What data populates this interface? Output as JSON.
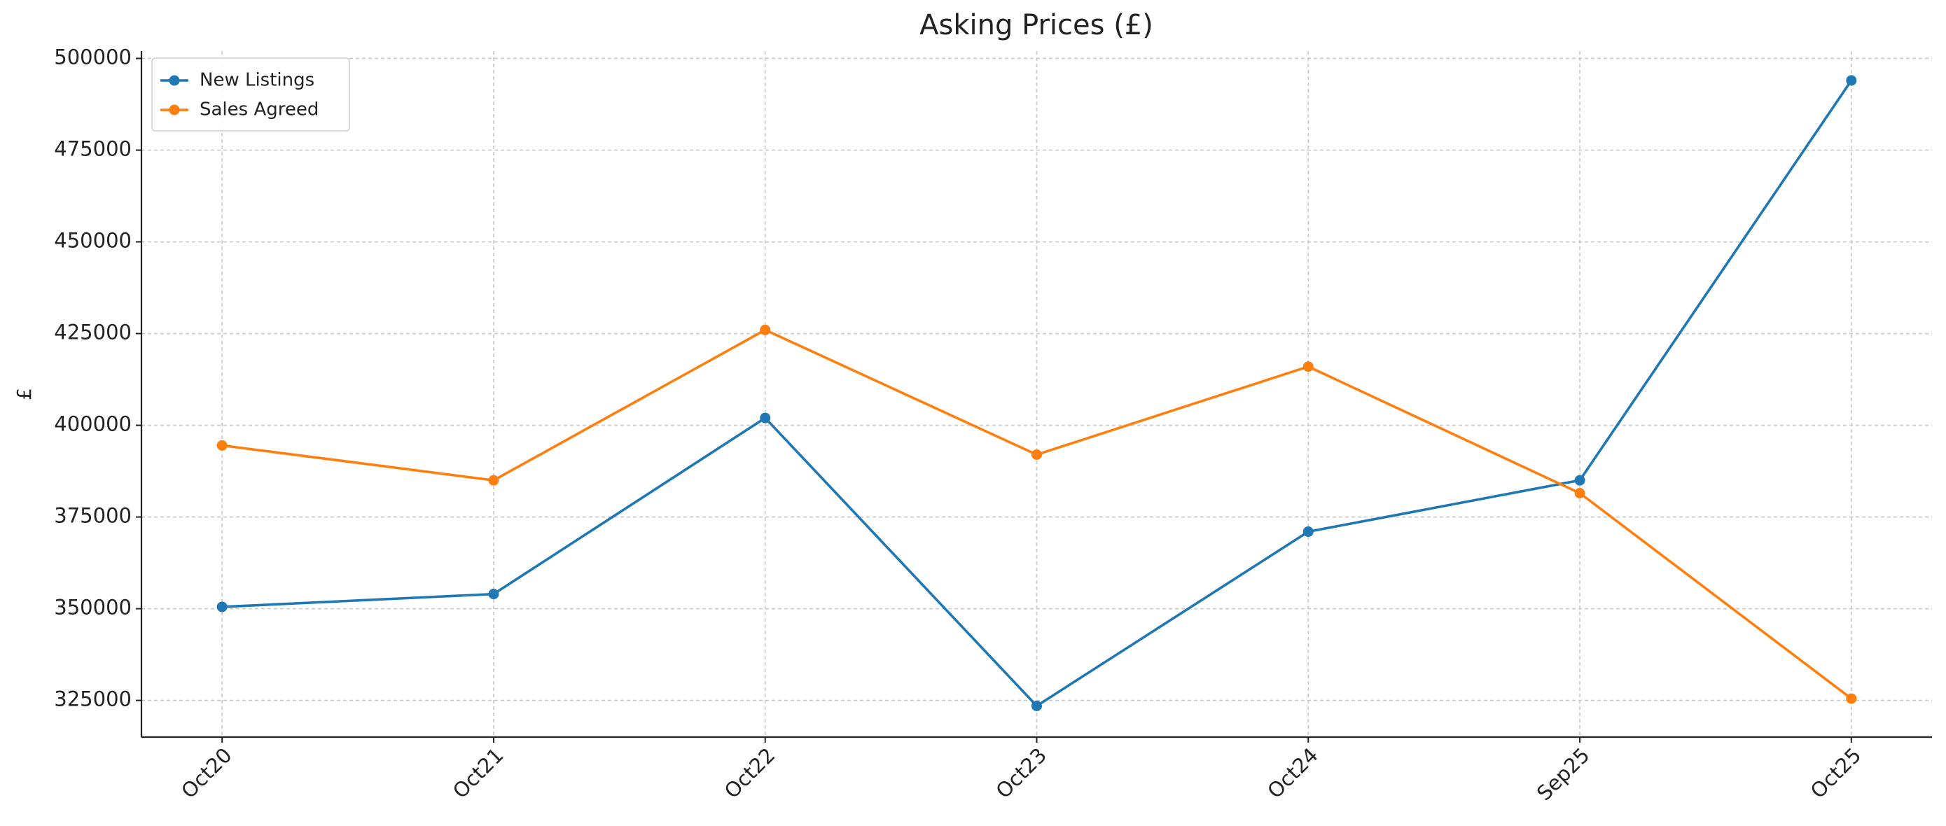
{
  "chart_data": {
    "type": "line",
    "title": "Asking Prices (£)",
    "y_label": "£",
    "categories": [
      "Oct20",
      "Oct21",
      "Oct22",
      "Oct23",
      "Oct24",
      "Sep25",
      "Oct25"
    ],
    "series": [
      {
        "name": "New Listings",
        "color": "#1f77b4",
        "values": [
          350500,
          354000,
          402000,
          323500,
          371000,
          385000,
          494000
        ]
      },
      {
        "name": "Sales Agreed",
        "color": "#ff7f0e",
        "values": [
          394500,
          385000,
          426000,
          392000,
          416000,
          381500,
          325500
        ]
      }
    ],
    "ylim": [
      315000,
      502000
    ],
    "yticks": [
      325000,
      350000,
      375000,
      400000,
      425000,
      450000,
      475000,
      500000
    ],
    "grid": true,
    "legend": "upper-left"
  }
}
